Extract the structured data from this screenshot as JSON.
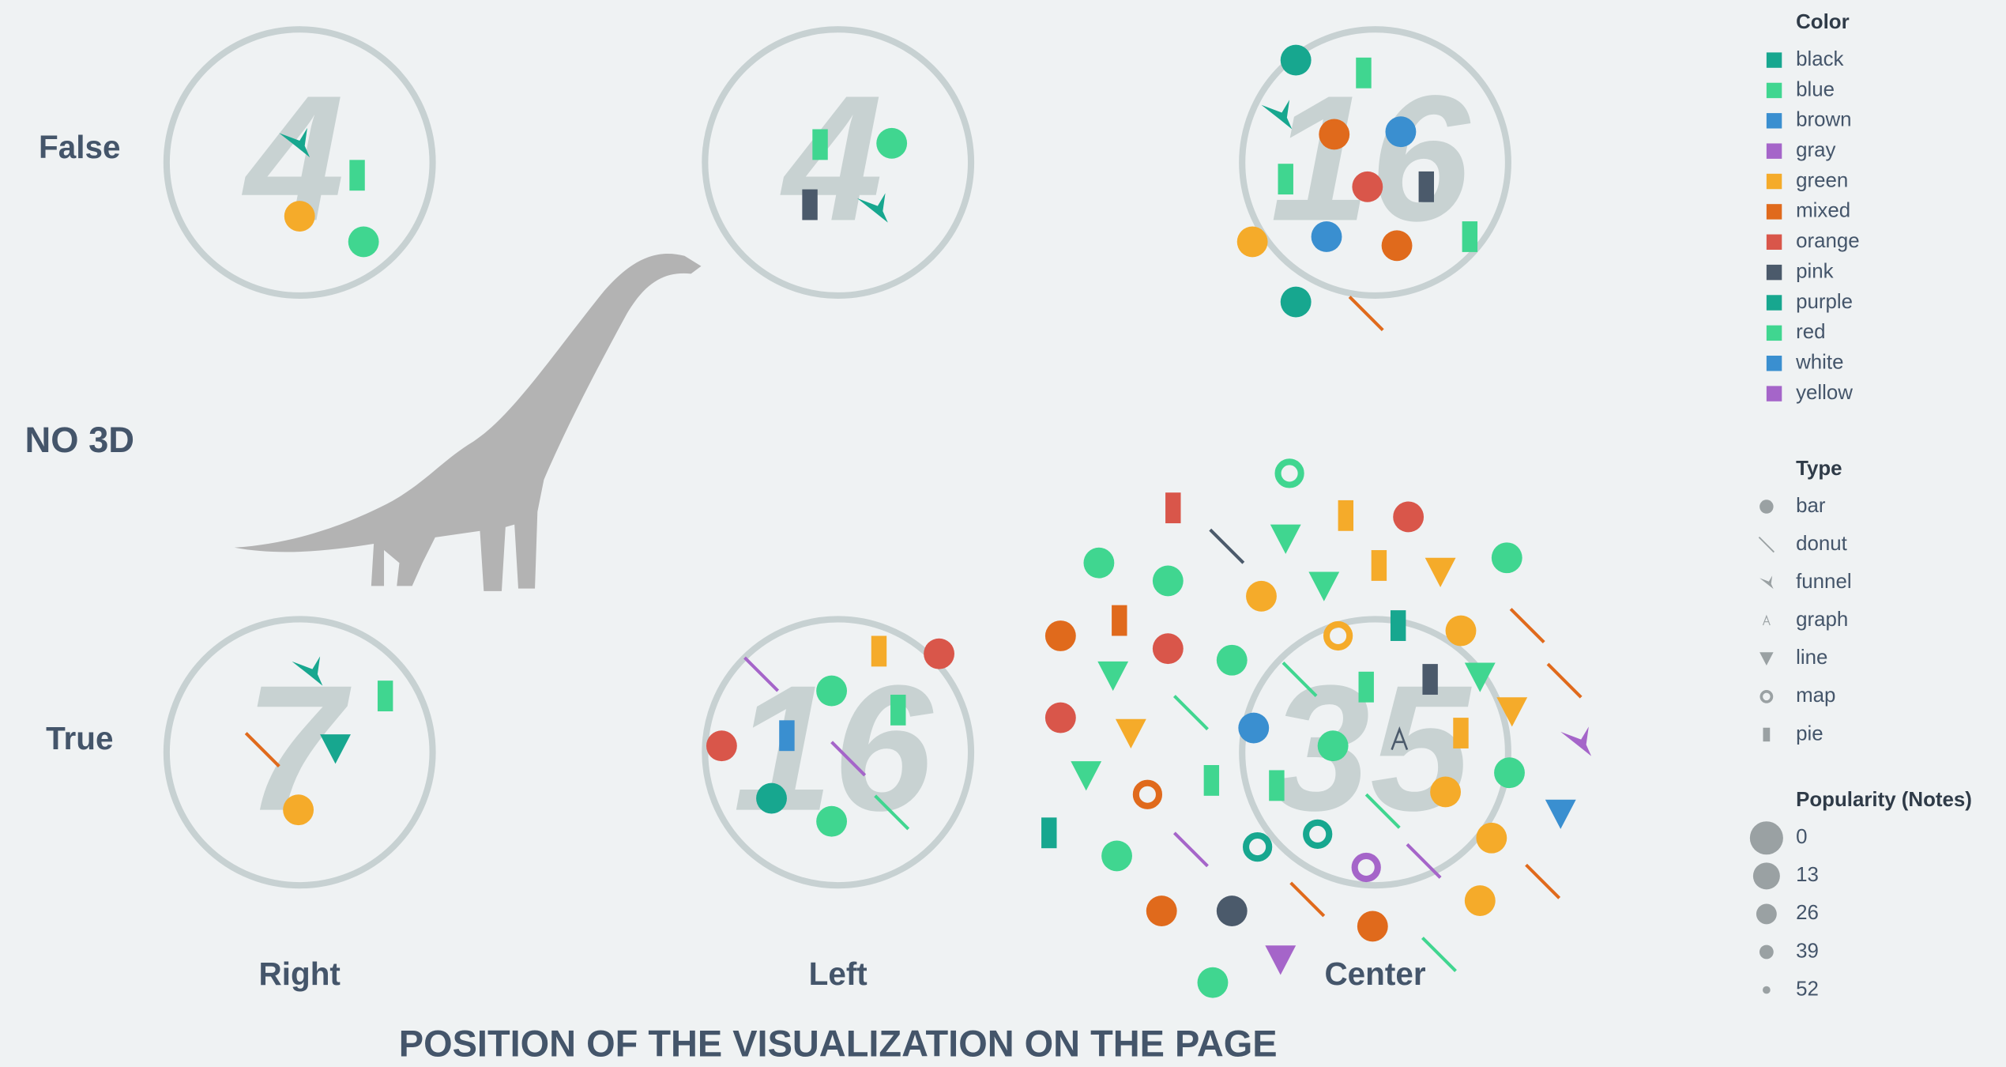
{
  "rows": [
    "False",
    "True"
  ],
  "group_label": "NO 3D",
  "columns": [
    "Right",
    "Left",
    "Center"
  ],
  "axis_title": "POSITION OF THE VISUALIZATION ON THE PAGE",
  "cells": [
    [
      4,
      4,
      16
    ],
    [
      7,
      16,
      35
    ]
  ],
  "legend": {
    "color": {
      "title": "Color",
      "items": [
        {
          "label": "black",
          "color": "#17a78f"
        },
        {
          "label": "blue",
          "color": "#40d690"
        },
        {
          "label": "brown",
          "color": "#3a8fd0"
        },
        {
          "label": "gray",
          "color": "#a565c9"
        },
        {
          "label": "green",
          "color": "#f5ab2a"
        },
        {
          "label": "mixed",
          "color": "#e06a1c"
        },
        {
          "label": "orange",
          "color": "#d9564a"
        },
        {
          "label": "pink",
          "color": "#4b5a6b"
        },
        {
          "label": "purple",
          "color": "#17a78f"
        },
        {
          "label": "red",
          "color": "#40d690"
        },
        {
          "label": "white",
          "color": "#3a8fd0"
        },
        {
          "label": "yellow",
          "color": "#a565c9"
        }
      ]
    },
    "type": {
      "title": "Type",
      "items": [
        "bar",
        "donut",
        "funnel",
        "graph",
        "line",
        "map",
        "pie"
      ]
    },
    "popularity": {
      "title": "Popularity (Notes)",
      "items": [
        0,
        13,
        26,
        39,
        52
      ]
    }
  }
}
